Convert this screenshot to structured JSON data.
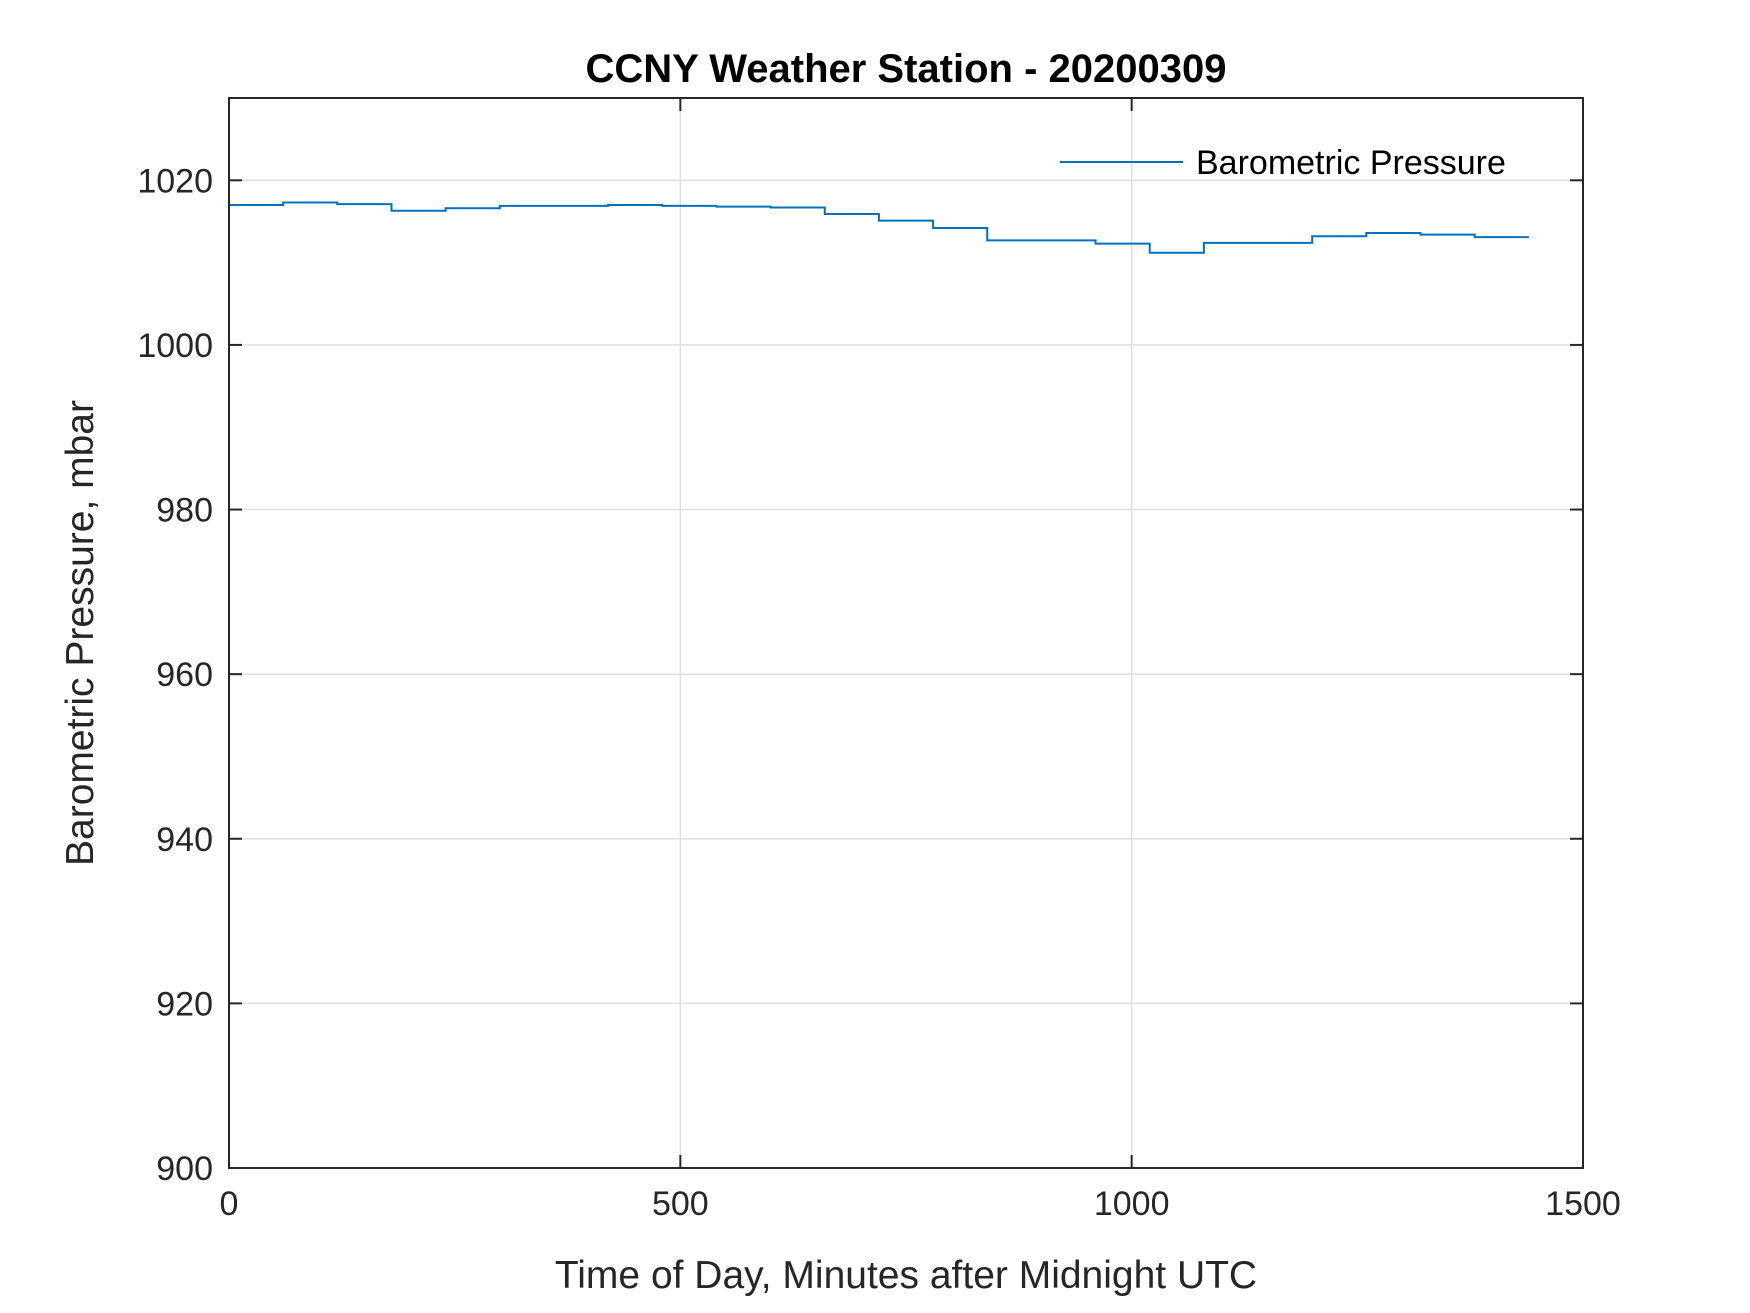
{
  "chart_data": {
    "type": "line",
    "title": "CCNY Weather Station - 20200309",
    "xlabel": "Time of Day, Minutes after Midnight UTC",
    "ylabel": "Barometric Pressure, mbar",
    "xlim": [
      0,
      1500
    ],
    "ylim": [
      900,
      1030
    ],
    "xticks": [
      0,
      500,
      1000,
      1500
    ],
    "yticks": [
      900,
      920,
      940,
      960,
      980,
      1000,
      1020
    ],
    "xtick_labels": [
      "0",
      "500",
      "1000",
      "1500"
    ],
    "ytick_labels": [
      "900",
      "920",
      "940",
      "960",
      "980",
      "1000",
      "1020"
    ],
    "grid": true,
    "legend_position": "top-right",
    "color": "#0072BD",
    "series": [
      {
        "name": "Barometric Pressure",
        "style": "step",
        "x": [
          0,
          60,
          120,
          180,
          240,
          300,
          420,
          480,
          540,
          600,
          660,
          720,
          780,
          840,
          960,
          1020,
          1080,
          1200,
          1260,
          1320,
          1380,
          1440
        ],
        "values": [
          1017.0,
          1017.3,
          1017.1,
          1016.3,
          1016.6,
          1016.9,
          1017.0,
          1016.9,
          1016.8,
          1016.7,
          1015.9,
          1015.1,
          1014.2,
          1012.7,
          1012.3,
          1011.2,
          1012.4,
          1013.2,
          1013.6,
          1013.4,
          1013.1,
          1013.1
        ]
      }
    ]
  }
}
